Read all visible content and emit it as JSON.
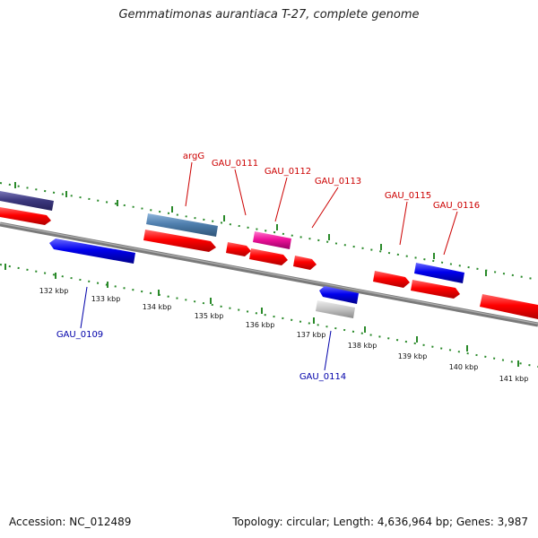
{
  "title": "Gemmatimonas aurantiaca T-27, complete genome",
  "footer": {
    "accession": "Accession: NC_012489",
    "summary": "Topology: circular; Length: 4,636,964 bp; Genes: 3,987"
  },
  "colors": {
    "backbone": "#888888",
    "dots": "#227a22",
    "red_label": "#cc0000",
    "blue_label": "#0000aa",
    "gene_red": "#ff0000",
    "gene_blue": "#0000ee",
    "gene_steel": "#4f7fae",
    "gene_magenta": "#ee1199",
    "gene_navy": "#3e3a80",
    "gene_grey": "#bbbbbb"
  },
  "ticks": [
    "132 kbp",
    "133 kbp",
    "134 kbp",
    "135 kbp",
    "136 kbp",
    "137 kbp",
    "138 kbp",
    "139 kbp",
    "140 kbp",
    "141 kbp"
  ],
  "gene_labels": [
    {
      "text": "argG",
      "side": "top"
    },
    {
      "text": "GAU_0111",
      "side": "top"
    },
    {
      "text": "GAU_0112",
      "side": "top"
    },
    {
      "text": "GAU_0113",
      "side": "top"
    },
    {
      "text": "GAU_0115",
      "side": "top"
    },
    {
      "text": "GAU_0116",
      "side": "top"
    },
    {
      "text": "GAU_0109",
      "side": "bottom"
    },
    {
      "text": "GAU_0114",
      "side": "bottom"
    }
  ]
}
